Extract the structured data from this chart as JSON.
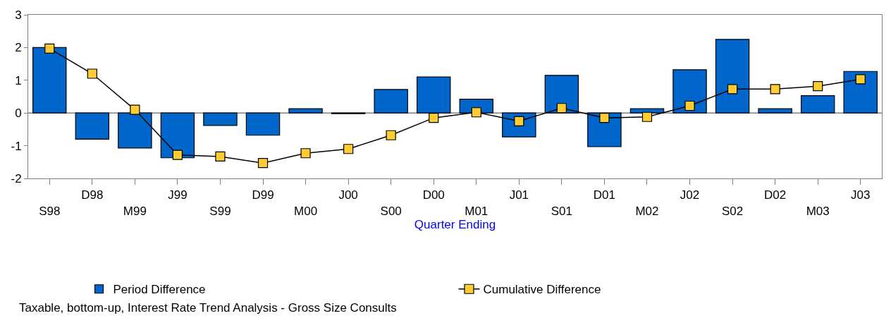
{
  "chart_data": {
    "type": "bar",
    "categories": [
      "S98",
      "D98",
      "M99",
      "J99",
      "S99",
      "D99",
      "M00",
      "J00",
      "S00",
      "D00",
      "M01",
      "J01",
      "S01",
      "D01",
      "M02",
      "J02",
      "S02",
      "D02",
      "M03",
      "J03"
    ],
    "xlabel": "Quarter Ending",
    "series": [
      {
        "name": "Period Difference",
        "color": "#0066cc",
        "values": [
          2.0,
          -0.8,
          -1.07,
          -1.37,
          -0.38,
          -0.68,
          0.13,
          -0.02,
          0.72,
          1.1,
          0.42,
          -0.73,
          1.15,
          -1.03,
          0.13,
          1.32,
          2.25,
          0.13,
          0.53,
          1.27
        ]
      },
      {
        "name": "Cumulative Difference",
        "type": "line",
        "color": "#ffcc33",
        "marker": "square",
        "values": [
          1.97,
          1.2,
          0.1,
          -1.28,
          -1.33,
          -1.53,
          -1.23,
          -1.1,
          -0.68,
          -0.15,
          0.02,
          -0.25,
          0.15,
          -0.15,
          -0.12,
          0.22,
          0.73,
          0.73,
          0.82,
          1.03
        ]
      }
    ],
    "ylim": [
      -2,
      3
    ],
    "yticks": [
      -2,
      -1,
      0,
      1,
      2,
      3
    ],
    "ref_lines": [
      {
        "axis": "y",
        "value": 0,
        "color": "#808080"
      }
    ],
    "legend": "bottom",
    "annotations": [
      "Taxable, bottom-up, Interest Rate Trend Analysis - Gross Size Consults"
    ]
  }
}
